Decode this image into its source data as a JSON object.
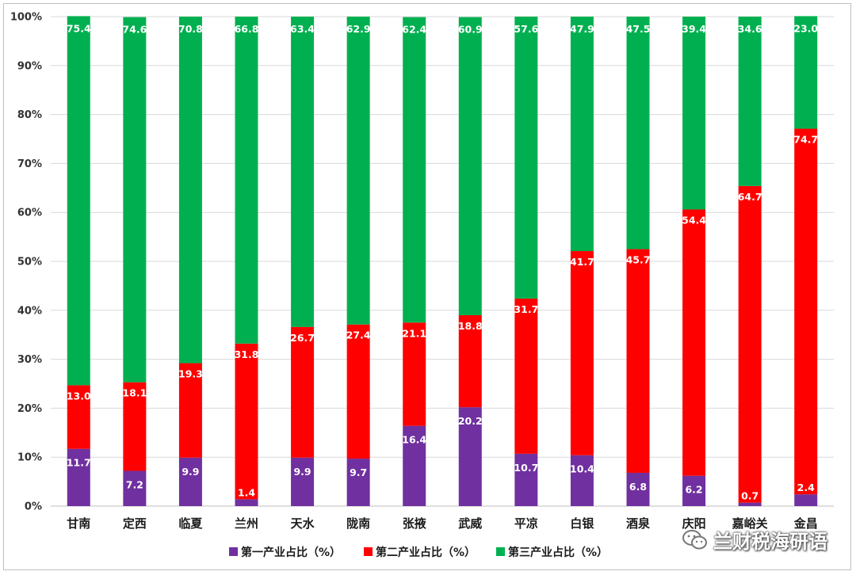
{
  "chart_data": {
    "type": "bar",
    "stacked": true,
    "categories": [
      "甘南",
      "定西",
      "临夏",
      "兰州",
      "天水",
      "陇南",
      "张掖",
      "武威",
      "平凉",
      "白银",
      "酒泉",
      "庆阳",
      "嘉峪关",
      "金昌"
    ],
    "series": [
      {
        "name": "第一产业占比（%）",
        "color": "#7030a0",
        "values": [
          11.7,
          7.2,
          9.9,
          1.4,
          9.9,
          9.7,
          16.4,
          20.2,
          10.7,
          10.4,
          6.8,
          6.2,
          0.7,
          2.4
        ]
      },
      {
        "name": "第二产业占比（%）",
        "color": "#ff0000",
        "values": [
          13.0,
          18.1,
          19.3,
          31.8,
          26.7,
          27.4,
          21.1,
          18.8,
          31.7,
          41.7,
          45.7,
          54.4,
          64.7,
          74.7
        ]
      },
      {
        "name": "第三产业占比（%）",
        "color": "#00b050",
        "values": [
          75.4,
          74.6,
          70.8,
          66.8,
          63.4,
          62.9,
          62.4,
          60.9,
          57.6,
          47.9,
          47.5,
          39.4,
          34.6,
          23.0
        ]
      }
    ],
    "y_ticks": [
      "0%",
      "10%",
      "20%",
      "30%",
      "40%",
      "50%",
      "60%",
      "70%",
      "80%",
      "90%",
      "100%"
    ],
    "ylim": [
      0,
      100
    ],
    "grid": true,
    "legend_position": "bottom",
    "title": "",
    "xlabel": "",
    "ylabel": ""
  },
  "watermark": {
    "text": "兰财税海研语",
    "icon": "wechat-icon"
  }
}
